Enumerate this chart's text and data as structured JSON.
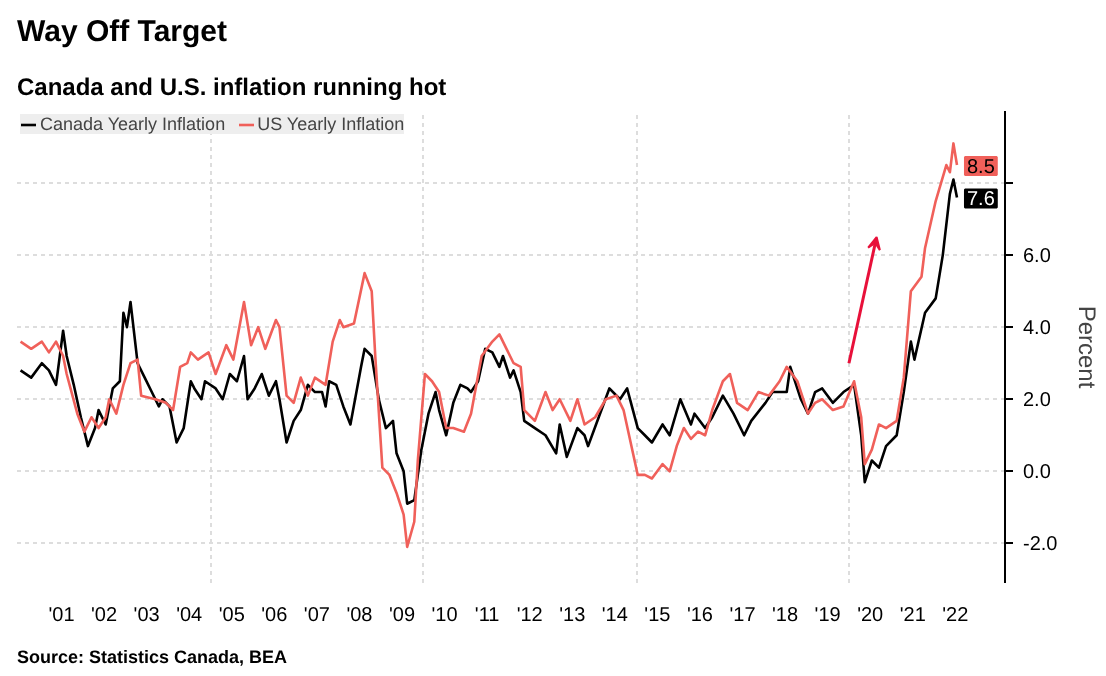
{
  "chart_data": {
    "type": "line",
    "title": "Way Off Target",
    "subtitle": "Canada and U.S. inflation running hot",
    "ylabel": "Percent",
    "annotations": [
      "Source: Statistics Canada, BEA"
    ],
    "xlim": [
      "2000-06-15",
      "2023-09-01"
    ],
    "ylim": [
      -3.1,
      10
    ],
    "xticks": [
      {
        "value": "2001-07-01",
        "label": "'01"
      },
      {
        "value": "2002-07-01",
        "label": "'02"
      },
      {
        "value": "2003-07-01",
        "label": "'03"
      },
      {
        "value": "2004-07-01",
        "label": "'04"
      },
      {
        "value": "2005-07-01",
        "label": "'05"
      },
      {
        "value": "2006-07-01",
        "label": "'06"
      },
      {
        "value": "2007-07-01",
        "label": "'07"
      },
      {
        "value": "2008-07-01",
        "label": "'08"
      },
      {
        "value": "2009-07-01",
        "label": "'09"
      },
      {
        "value": "2010-07-01",
        "label": "'10"
      },
      {
        "value": "2011-07-01",
        "label": "'11"
      },
      {
        "value": "2012-07-01",
        "label": "'12"
      },
      {
        "value": "2013-07-01",
        "label": "'13"
      },
      {
        "value": "2014-07-01",
        "label": "'14"
      },
      {
        "value": "2015-07-01",
        "label": "'15"
      },
      {
        "value": "2016-07-01",
        "label": "'16"
      },
      {
        "value": "2017-07-01",
        "label": "'17"
      },
      {
        "value": "2018-07-01",
        "label": "'18"
      },
      {
        "value": "2019-07-01",
        "label": "'19"
      },
      {
        "value": "2020-07-01",
        "label": "'20"
      },
      {
        "value": "2021-07-01",
        "label": "'21"
      },
      {
        "value": "2022-07-01",
        "label": "'22"
      },
      {
        "value": "2005-01-01",
        "label": null
      },
      {
        "value": "2010-01-01",
        "label": null
      },
      {
        "value": "2015-01-01",
        "label": null
      },
      {
        "value": "2020-01-01",
        "label": null
      }
    ],
    "yticks": [
      {
        "value": -2,
        "label": "-2.0"
      },
      {
        "value": 0,
        "label": "0.0"
      },
      {
        "value": 2,
        "label": "2.0"
      },
      {
        "value": 4,
        "label": "4.0"
      },
      {
        "value": 6,
        "label": "6.0"
      },
      {
        "value": 8,
        "label": null
      }
    ],
    "grid": true,
    "legend": "top left",
    "series": [
      {
        "name": "Canada Yearly Inflation",
        "color": "#000000",
        "x": [
          "2000-07",
          "2000-10",
          "2001-01",
          "2001-03",
          "2001-05",
          "2001-07",
          "2001-08",
          "2001-10",
          "2001-12",
          "2002-02",
          "2002-04",
          "2002-05",
          "2002-07",
          "2002-09",
          "2002-11",
          "2002-12",
          "2003-01",
          "2003-02",
          "2003-04",
          "2003-06",
          "2003-08",
          "2003-10",
          "2003-11",
          "2004-01",
          "2004-03",
          "2004-05",
          "2004-07",
          "2004-08",
          "2004-10",
          "2004-11",
          "2005-02",
          "2005-04",
          "2005-06",
          "2005-08",
          "2005-10",
          "2005-11",
          "2006-01",
          "2006-03",
          "2006-05",
          "2006-07",
          "2006-08",
          "2006-10",
          "2006-12",
          "2007-02",
          "2007-04",
          "2007-06",
          "2007-08",
          "2007-09",
          "2007-10",
          "2007-12",
          "2008-02",
          "2008-04",
          "2008-07",
          "2008-08",
          "2008-10",
          "2008-12",
          "2009-02",
          "2009-04",
          "2009-05",
          "2009-07",
          "2009-08",
          "2009-10",
          "2009-12",
          "2010-02",
          "2010-04",
          "2010-05",
          "2010-07",
          "2010-09",
          "2010-11",
          "2011-01",
          "2011-02",
          "2011-04",
          "2011-06",
          "2011-08",
          "2011-10",
          "2011-11",
          "2012-01",
          "2012-02",
          "2012-04",
          "2012-05",
          "2012-08",
          "2012-11",
          "2013-02",
          "2013-03",
          "2013-05",
          "2013-08",
          "2013-10",
          "2013-11",
          "2014-02",
          "2014-05",
          "2014-08",
          "2014-10",
          "2015-01",
          "2015-03",
          "2015-05",
          "2015-08",
          "2015-10",
          "2016-01",
          "2016-04",
          "2016-05",
          "2016-08",
          "2016-10",
          "2017-01",
          "2017-04",
          "2017-07",
          "2017-09",
          "2018-01",
          "2018-03",
          "2018-07",
          "2018-08",
          "2018-11",
          "2019-01",
          "2019-03",
          "2019-05",
          "2019-08",
          "2019-11",
          "2020-02",
          "2020-04",
          "2020-05",
          "2020-07",
          "2020-09",
          "2020-11",
          "2021-02",
          "2021-04",
          "2021-06",
          "2021-07",
          "2021-10",
          "2022-01",
          "2022-03",
          "2022-05",
          "2022-06",
          "2022-07"
        ],
        "values": [
          2.8,
          2.6,
          3.0,
          2.8,
          2.4,
          3.9,
          3.2,
          2.4,
          1.5,
          0.7,
          1.2,
          1.7,
          1.3,
          2.3,
          2.5,
          4.4,
          4.0,
          4.7,
          3.0,
          2.6,
          2.2,
          1.8,
          2.0,
          1.8,
          0.8,
          1.2,
          2.5,
          2.3,
          2.0,
          2.5,
          2.3,
          2.0,
          2.7,
          2.5,
          3.2,
          2.0,
          2.3,
          2.7,
          2.1,
          2.5,
          2.0,
          0.8,
          1.4,
          1.7,
          2.4,
          2.2,
          2.2,
          1.8,
          2.5,
          2.4,
          1.8,
          1.3,
          2.9,
          3.4,
          3.2,
          2.0,
          1.2,
          1.4,
          0.5,
          0.0,
          -0.9,
          -0.8,
          0.6,
          1.6,
          2.2,
          1.7,
          1.0,
          1.9,
          2.4,
          2.3,
          2.2,
          2.5,
          3.4,
          3.3,
          2.9,
          3.2,
          2.6,
          2.8,
          2.2,
          1.4,
          1.2,
          1.0,
          0.5,
          1.3,
          0.4,
          1.2,
          1.0,
          0.7,
          1.5,
          2.3,
          2.0,
          2.3,
          1.2,
          1.0,
          0.8,
          1.3,
          1.0,
          2.0,
          1.3,
          1.6,
          1.2,
          1.5,
          2.1,
          1.6,
          1.0,
          1.4,
          1.9,
          2.2,
          2.2,
          2.9,
          2.0,
          1.6,
          2.2,
          2.3,
          1.9,
          2.2,
          2.4,
          1.0,
          -0.3,
          0.3,
          0.1,
          0.7,
          1.0,
          2.2,
          3.6,
          3.1,
          4.4,
          4.8,
          6.0,
          7.7,
          8.1,
          7.6
        ],
        "value_labels": [
          null,
          null,
          null,
          null,
          null,
          null,
          null,
          null,
          null,
          null,
          null,
          null,
          null,
          null,
          null,
          null,
          null,
          null,
          null,
          null,
          null,
          null,
          null,
          null,
          null,
          null,
          null,
          null,
          null,
          null,
          null,
          null,
          null,
          null,
          null,
          null,
          null,
          null,
          null,
          null,
          null,
          null,
          null,
          null,
          null,
          null,
          null,
          null,
          null,
          null,
          null,
          null,
          null,
          null,
          null,
          null,
          null,
          null,
          null,
          null,
          null,
          null,
          null,
          null,
          null,
          null,
          null,
          null,
          null,
          null,
          null,
          null,
          null,
          null,
          null,
          null,
          null,
          null,
          null,
          null,
          null,
          null,
          null,
          null,
          null,
          null,
          null,
          null,
          null,
          null,
          null,
          null,
          null,
          null,
          null,
          null,
          null,
          null,
          null,
          null,
          null,
          null,
          null,
          null,
          null,
          null,
          null,
          null,
          null,
          null,
          null,
          null,
          null,
          null,
          null,
          null,
          null,
          null,
          null,
          null,
          null,
          null,
          null,
          null,
          null,
          null,
          null,
          null,
          null,
          null,
          null,
          "7.6"
        ]
      },
      {
        "name": "US Yearly Inflation",
        "color": "#f0605a",
        "x": [
          "2000-07",
          "2000-10",
          "2001-01",
          "2001-03",
          "2001-05",
          "2001-07",
          "2001-08",
          "2001-11",
          "2002-01",
          "2002-03",
          "2002-05",
          "2002-07",
          "2002-08",
          "2002-10",
          "2002-12",
          "2003-02",
          "2003-04",
          "2003-05",
          "2003-09",
          "2003-12",
          "2004-02",
          "2004-04",
          "2004-06",
          "2004-07",
          "2004-09",
          "2004-12",
          "2005-02",
          "2005-05",
          "2005-07",
          "2005-10",
          "2005-12",
          "2006-02",
          "2006-04",
          "2006-07",
          "2006-08",
          "2006-10",
          "2006-12",
          "2007-02",
          "2007-04",
          "2007-06",
          "2007-09",
          "2007-11",
          "2008-01",
          "2008-02",
          "2008-05",
          "2008-08",
          "2008-10",
          "2008-11",
          "2009-01",
          "2009-03",
          "2009-05",
          "2009-07",
          "2009-08",
          "2009-10",
          "2009-11",
          "2010-01",
          "2010-03",
          "2010-05",
          "2010-07",
          "2010-09",
          "2010-12",
          "2011-02",
          "2011-05",
          "2011-08",
          "2011-10",
          "2011-12",
          "2012-02",
          "2012-04",
          "2012-05",
          "2012-08",
          "2012-11",
          "2013-01",
          "2013-03",
          "2013-06",
          "2013-08",
          "2013-10",
          "2014-01",
          "2014-04",
          "2014-07",
          "2014-09",
          "2014-11",
          "2015-01",
          "2015-03",
          "2015-05",
          "2015-08",
          "2015-10",
          "2015-12",
          "2016-02",
          "2016-04",
          "2016-06",
          "2016-08",
          "2016-10",
          "2017-01",
          "2017-03",
          "2017-05",
          "2017-08",
          "2017-11",
          "2018-02",
          "2018-05",
          "2018-07",
          "2018-10",
          "2019-01",
          "2019-03",
          "2019-05",
          "2019-08",
          "2019-11",
          "2020-02",
          "2020-04",
          "2020-05",
          "2020-07",
          "2020-09",
          "2020-11",
          "2021-02",
          "2021-04",
          "2021-06",
          "2021-09",
          "2021-10",
          "2022-01",
          "2022-04",
          "2022-05",
          "2022-06",
          "2022-07"
        ],
        "values": [
          3.6,
          3.4,
          3.6,
          3.3,
          3.6,
          3.2,
          2.7,
          1.6,
          1.1,
          1.5,
          1.2,
          1.5,
          2.0,
          1.6,
          2.4,
          3.0,
          3.1,
          2.1,
          2.0,
          1.9,
          1.7,
          2.9,
          3.0,
          3.3,
          3.1,
          3.3,
          2.7,
          3.5,
          3.1,
          4.7,
          3.5,
          4.0,
          3.4,
          4.2,
          4.0,
          2.1,
          1.9,
          2.6,
          2.1,
          2.6,
          2.4,
          3.6,
          4.2,
          4.0,
          4.1,
          5.5,
          5.0,
          3.2,
          0.1,
          -0.1,
          -0.6,
          -1.2,
          -2.1,
          -1.4,
          0.3,
          2.7,
          2.5,
          2.2,
          1.2,
          1.2,
          1.1,
          1.6,
          3.2,
          3.6,
          3.8,
          3.4,
          3.0,
          2.9,
          1.7,
          1.4,
          2.2,
          1.7,
          2.0,
          1.4,
          2.0,
          1.3,
          1.5,
          2.0,
          2.1,
          1.7,
          0.8,
          -0.1,
          -0.1,
          -0.2,
          0.2,
          0.0,
          0.7,
          1.2,
          0.9,
          1.1,
          1.0,
          1.7,
          2.5,
          2.7,
          1.9,
          1.7,
          2.2,
          2.1,
          2.5,
          2.9,
          2.5,
          1.6,
          1.9,
          2.0,
          1.7,
          1.8,
          2.5,
          1.5,
          0.2,
          0.6,
          1.3,
          1.2,
          1.4,
          2.6,
          5.0,
          5.4,
          6.2,
          7.5,
          8.5,
          8.3,
          9.1,
          8.5
        ],
        "value_labels": [
          null,
          null,
          null,
          null,
          null,
          null,
          null,
          null,
          null,
          null,
          null,
          null,
          null,
          null,
          null,
          null,
          null,
          null,
          null,
          null,
          null,
          null,
          null,
          null,
          null,
          null,
          null,
          null,
          null,
          null,
          null,
          null,
          null,
          null,
          null,
          null,
          null,
          null,
          null,
          null,
          null,
          null,
          null,
          null,
          null,
          null,
          null,
          null,
          null,
          null,
          null,
          null,
          null,
          null,
          null,
          null,
          null,
          null,
          null,
          null,
          null,
          null,
          null,
          null,
          null,
          null,
          null,
          null,
          null,
          null,
          null,
          null,
          null,
          null,
          null,
          null,
          null,
          null,
          null,
          null,
          null,
          null,
          null,
          null,
          null,
          null,
          null,
          null,
          null,
          null,
          null,
          null,
          null,
          null,
          null,
          null,
          null,
          null,
          null,
          null,
          null,
          null,
          null,
          null,
          null,
          null,
          null,
          null,
          null,
          null,
          null,
          null,
          null,
          null,
          null,
          null,
          null,
          null,
          null,
          null,
          null,
          "8.5"
        ]
      }
    ]
  }
}
